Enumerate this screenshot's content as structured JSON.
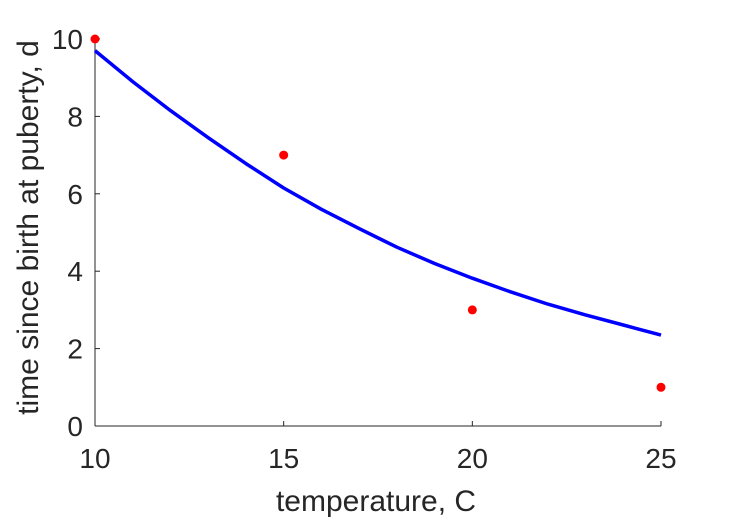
{
  "chart_data": {
    "type": "scatter",
    "title": "",
    "xlabel": "temperature, C",
    "ylabel": "time since birth at puberty, d",
    "xlim": [
      10,
      25
    ],
    "ylim": [
      0,
      10
    ],
    "grid": false,
    "x_ticks": [
      "10",
      "15",
      "20",
      "25"
    ],
    "y_ticks": [
      "0",
      "2",
      "4",
      "6",
      "8",
      "10"
    ],
    "series": [
      {
        "kind": "points",
        "color": "#ff0000",
        "x": [
          10,
          15,
          20,
          25
        ],
        "y": [
          10,
          7,
          3,
          1
        ]
      },
      {
        "kind": "line",
        "color": "#0000ff",
        "x": [
          10,
          11,
          12,
          13,
          14,
          15,
          16,
          17,
          18,
          19,
          20,
          21,
          22,
          23,
          24,
          25
        ],
        "y": [
          9.7,
          8.9,
          8.15,
          7.45,
          6.78,
          6.15,
          5.6,
          5.1,
          4.62,
          4.2,
          3.82,
          3.47,
          3.15,
          2.87,
          2.61,
          2.35
        ]
      }
    ]
  }
}
